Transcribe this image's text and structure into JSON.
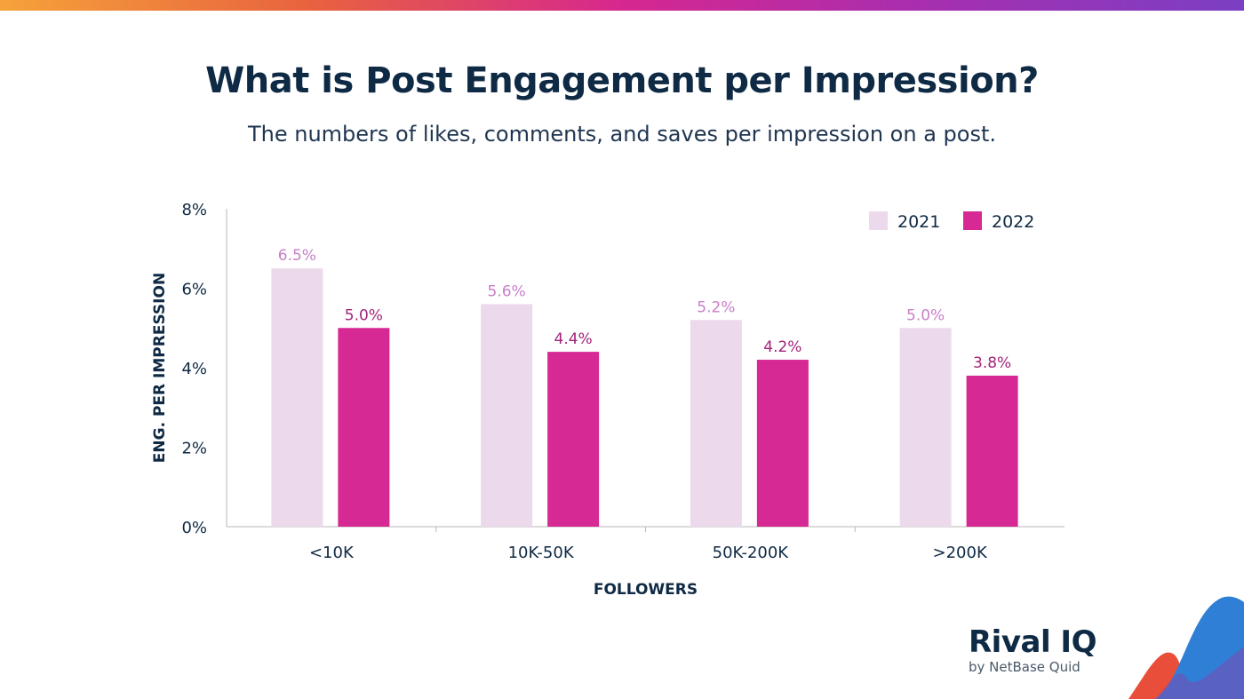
{
  "header": {
    "title": "What is Post Engagement per Impression?",
    "subtitle": "The numbers of likes, comments, and saves per impression on a post."
  },
  "brand": {
    "logo_main": "Rival IQ",
    "logo_sub": "by NetBase Quid"
  },
  "colors": {
    "series_2021": "#ecdaec",
    "series_2022": "#d62993",
    "label_2021": "#c97fc9",
    "label_2022": "#a3247a",
    "text": "#0f2a44",
    "axis": "#b8b8b8"
  },
  "chart_data": {
    "type": "bar",
    "title": "What is Post Engagement per Impression?",
    "subtitle": "The numbers of likes, comments, and saves per impression on a post.",
    "xlabel": "FOLLOWERS",
    "ylabel": "ENG. PER IMPRESSION",
    "categories": [
      "<10K",
      "10K-50K",
      "50K-200K",
      ">200K"
    ],
    "series": [
      {
        "name": "2021",
        "values": [
          6.5,
          5.6,
          5.2,
          5.0
        ],
        "labels": [
          "6.5%",
          "5.6%",
          "5.2%",
          "5.0%"
        ]
      },
      {
        "name": "2022",
        "values": [
          5.0,
          4.4,
          4.2,
          3.8
        ],
        "labels": [
          "5.0%",
          "4.4%",
          "4.2%",
          "3.8%"
        ]
      }
    ],
    "ylim": [
      0,
      8
    ],
    "yticks": [
      0,
      2,
      4,
      6,
      8
    ],
    "ytick_labels": [
      "0%",
      "2%",
      "4%",
      "6%",
      "8%"
    ],
    "grid": false,
    "legend_position": "top-right"
  }
}
